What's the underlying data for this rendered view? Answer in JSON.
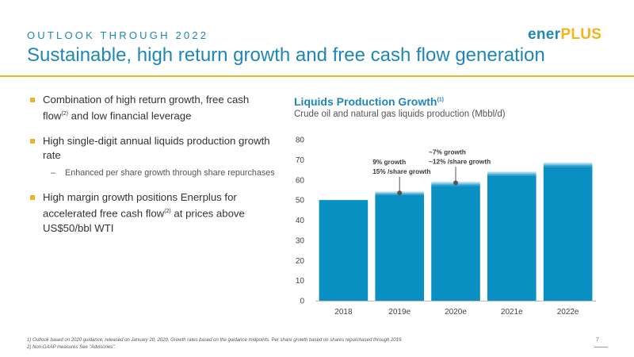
{
  "header": {
    "eyebrow": "OUTLOOK THROUGH 2022",
    "title": "Sustainable, high return growth and free cash flow generation",
    "logo_main": "ener",
    "logo_accent": "PLUS"
  },
  "bullets": [
    {
      "text_before": "Combination of high return growth, free cash flow",
      "sup": "(2)",
      "text_after": " and low financial leverage"
    },
    {
      "text": "High single-digit annual liquids production growth rate",
      "sub": "Enhanced per share growth through share repurchases"
    },
    {
      "text_before": "High margin growth positions Enerplus for accelerated free cash flow",
      "sup": "(2)",
      "text_after": " at prices above US$50/bbl WTI"
    }
  ],
  "chart_panel": {
    "title": "Liquids Production Growth",
    "title_sup": "(1)",
    "subtitle": "Crude oil and natural gas liquids production (Mbbl/d)"
  },
  "chart_data": {
    "type": "bar",
    "categories": [
      "2018",
      "2019e",
      "2020e",
      "2021e",
      "2022e"
    ],
    "values": [
      50,
      54.5,
      59.5,
      64.5,
      69
    ],
    "range_low": [
      null,
      52.5,
      57,
      62,
      66.5
    ],
    "ylim": [
      0,
      80
    ],
    "yticks": [
      0,
      10,
      20,
      30,
      40,
      50,
      60,
      70,
      80
    ],
    "grid": false,
    "color": "#0a8fc3",
    "annotations": [
      {
        "lines": [
          "9% growth",
          "15% /share growth"
        ],
        "category": "2019e",
        "value": 53.5
      },
      {
        "lines": [
          "~7% growth",
          "~12% /share growth"
        ],
        "category": "2020e",
        "value": 58.5
      }
    ]
  },
  "footnotes": [
    "1)   Outlook based on 2020 guidance, released on January 20, 2020. Growth rates based on the guidance midpoints. Per share growth based on shares repurchased through 2019.",
    "2)   Non-GAAP measures See \"Advisories\"."
  ],
  "page_number": "7"
}
